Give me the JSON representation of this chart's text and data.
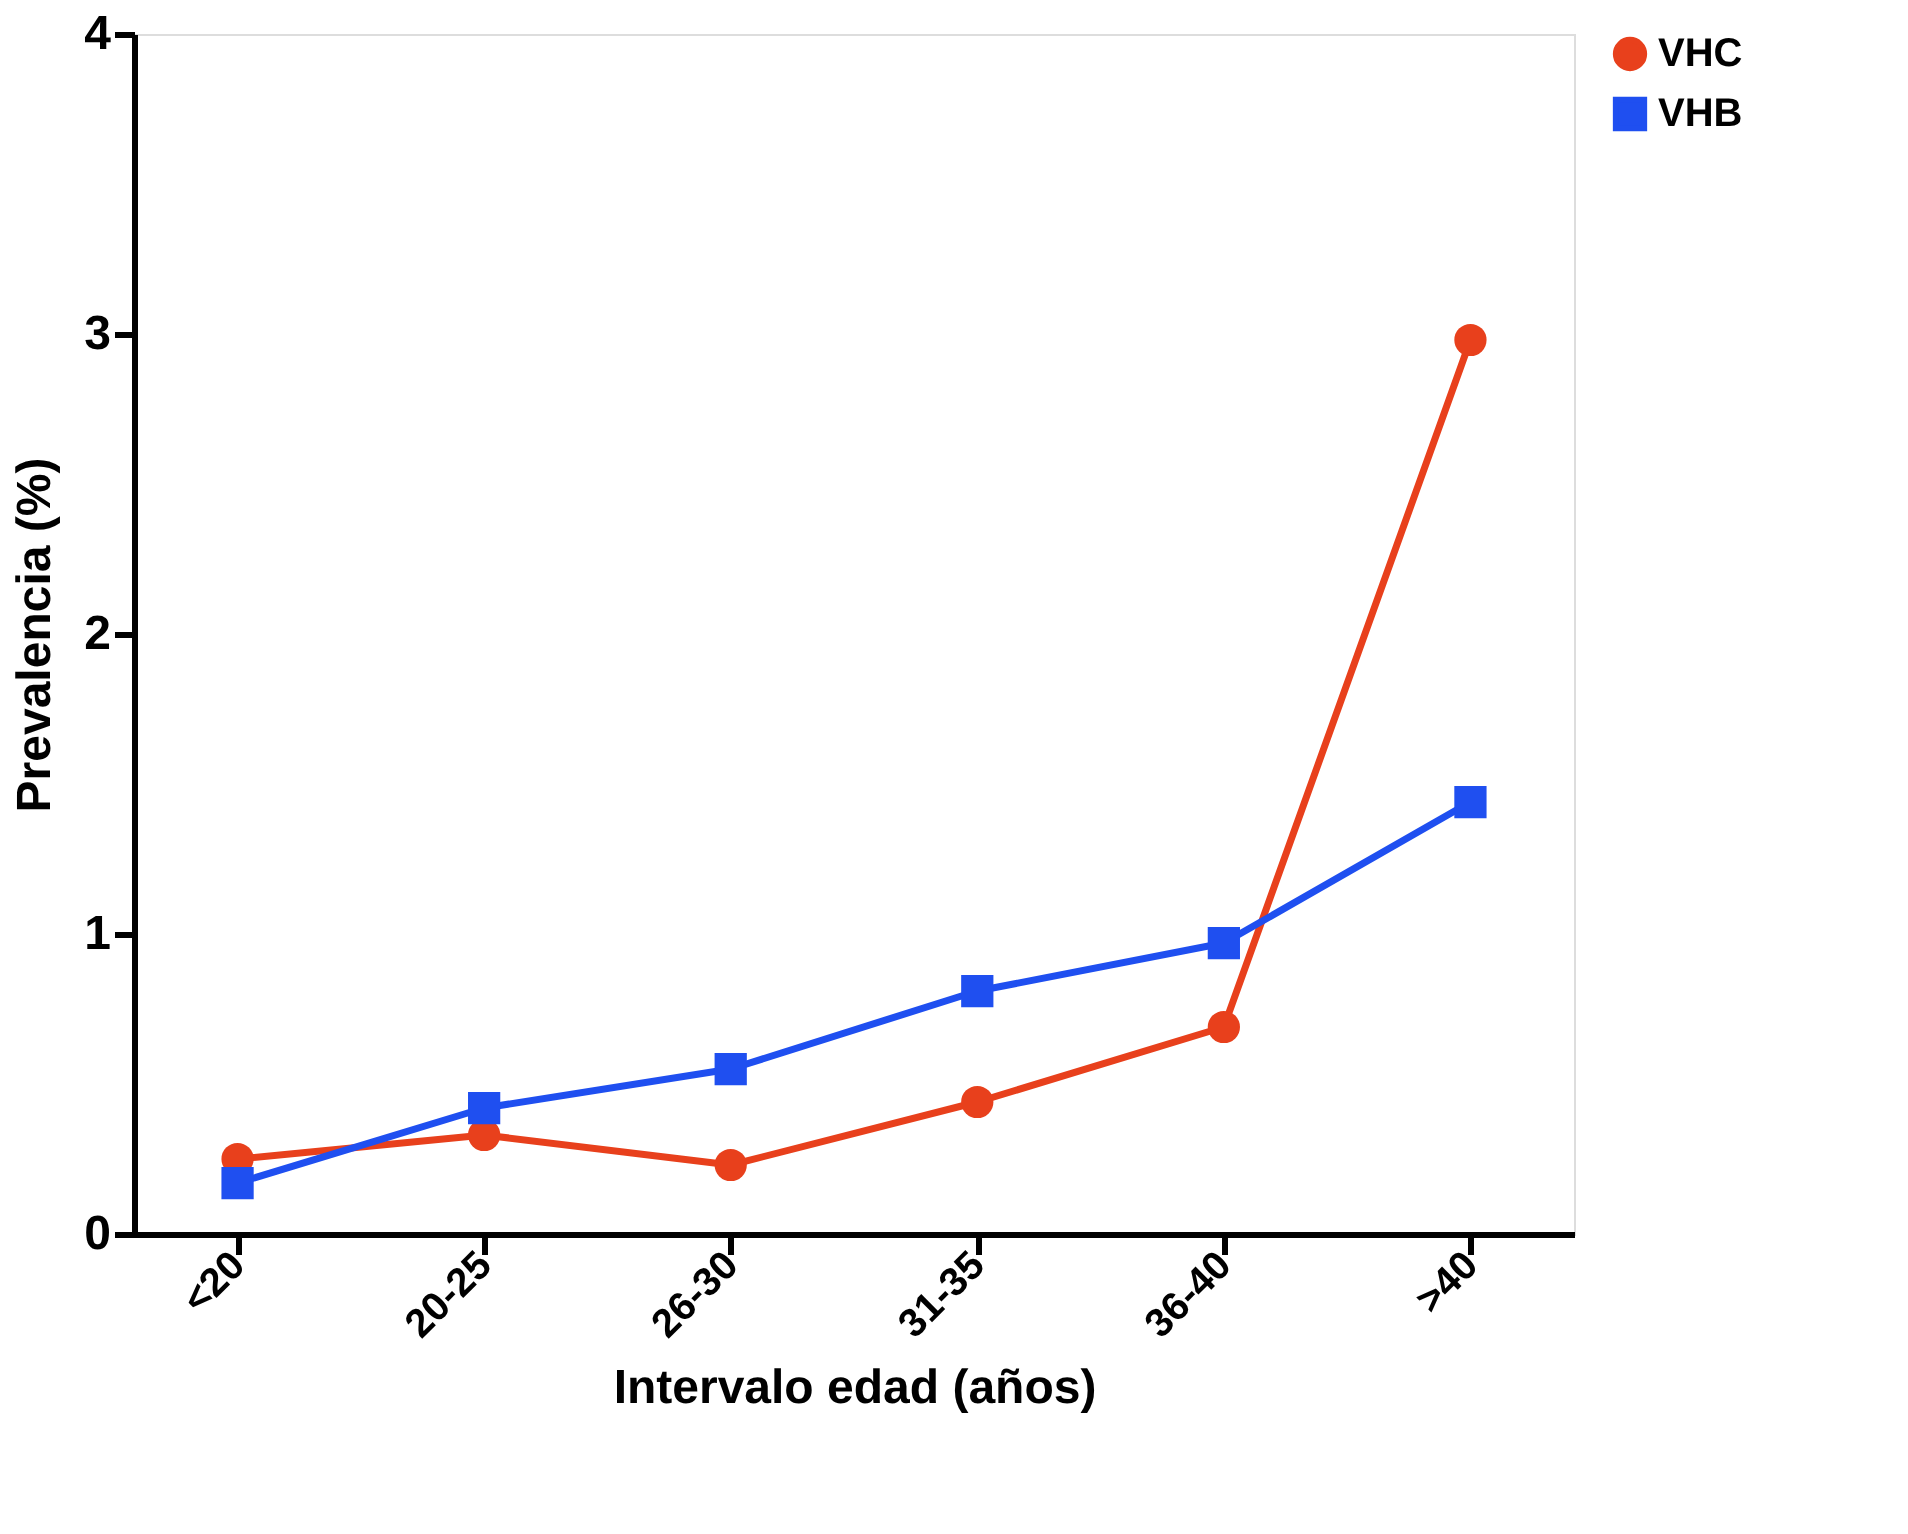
{
  "chart_data": {
    "type": "line",
    "xlabel": "Intervalo edad (años)",
    "ylabel": "Prevalencia (%)",
    "categories": [
      "<20",
      "20-25",
      "26-30",
      "31-35",
      "36-40",
      ">40"
    ],
    "series": [
      {
        "name": "VHC",
        "color": "#e8401c",
        "marker": "circle",
        "values": [
          0.25,
          0.33,
          0.23,
          0.44,
          0.69,
          2.98
        ]
      },
      {
        "name": "VHB",
        "color": "#1f4ff0",
        "marker": "square",
        "values": [
          0.17,
          0.42,
          0.55,
          0.81,
          0.97,
          1.44
        ]
      }
    ],
    "ylim": [
      0,
      4
    ],
    "yticks": [
      0,
      1,
      2,
      3,
      4
    ],
    "grid": false,
    "legend": "right",
    "line_style": "solid"
  }
}
